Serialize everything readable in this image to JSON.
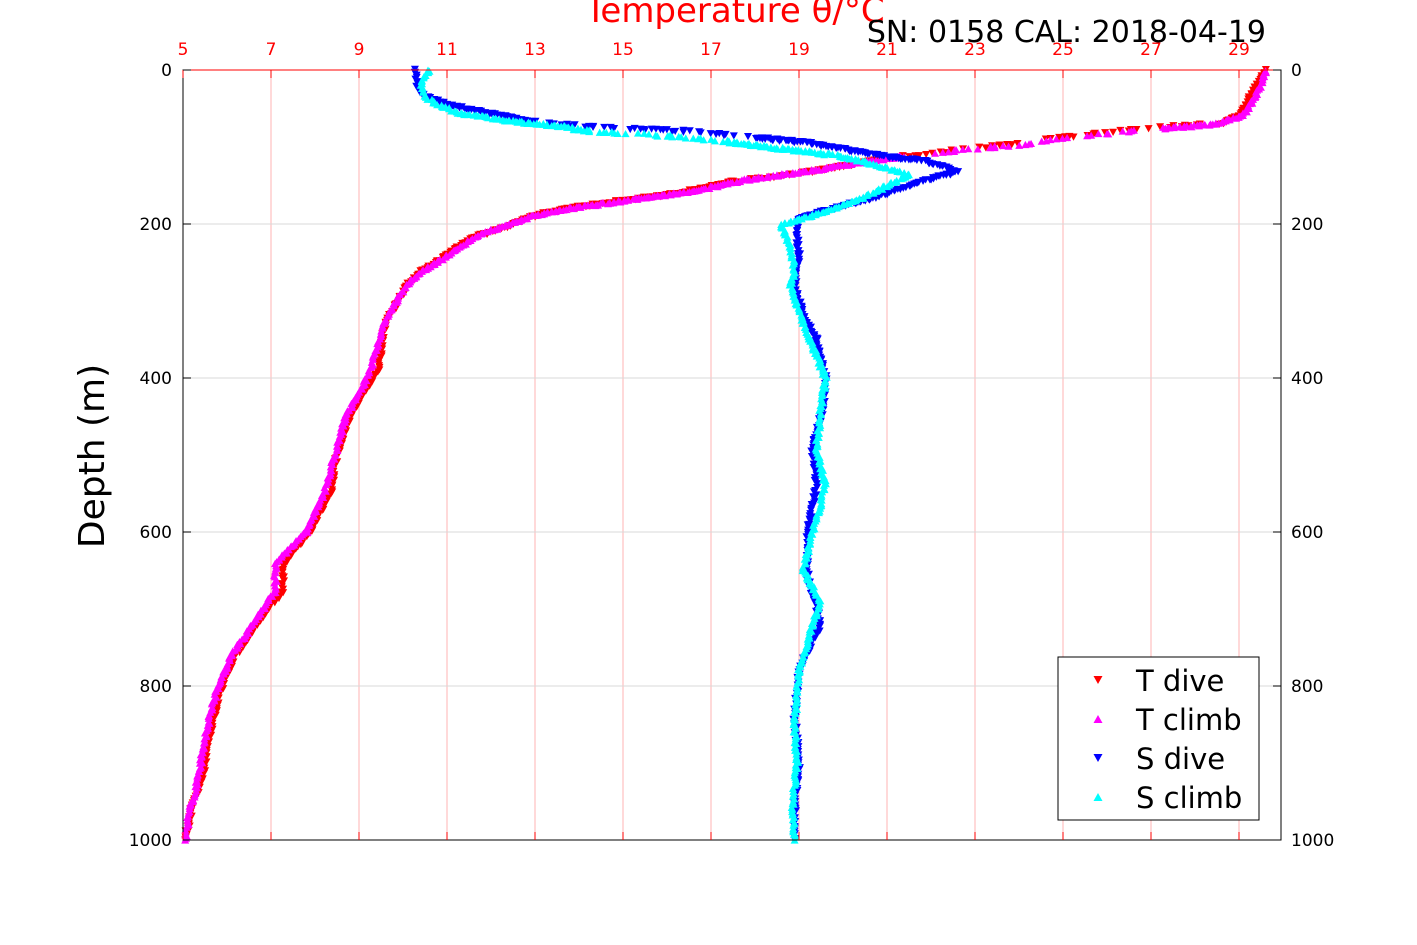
{
  "chart_data": {
    "type": "scatter",
    "title": "Temperature θ/°C",
    "annotation": "SN: 0158  CAL: 2018-04-19",
    "ylabel": "Depth (m)",
    "xlim": [
      5,
      30
    ],
    "ylim": [
      1000,
      0
    ],
    "x_ticks": [
      "5",
      "7",
      "9",
      "11",
      "13",
      "15",
      "17",
      "19",
      "21",
      "23",
      "25",
      "27",
      "29"
    ],
    "y_ticks": [
      "0",
      "200",
      "400",
      "600",
      "800",
      "1000"
    ],
    "grid": true,
    "legend_position": "bottom-right",
    "colors": {
      "axis_top": "#ff0000",
      "axis_left": "#000000",
      "grid": "#d9d9d9",
      "grid_top": "#ffb3b3"
    },
    "series": [
      {
        "name": "T dive",
        "color": "#ff0000",
        "marker": "triangle-down",
        "points": [
          [
            29.6,
            0
          ],
          [
            29.4,
            20
          ],
          [
            29.2,
            40
          ],
          [
            29.0,
            60
          ],
          [
            28.6,
            70
          ],
          [
            27.0,
            75
          ],
          [
            25.5,
            85
          ],
          [
            24.0,
            95
          ],
          [
            22.5,
            105
          ],
          [
            21.0,
            115
          ],
          [
            20.0,
            125
          ],
          [
            19.0,
            135
          ],
          [
            17.5,
            145
          ],
          [
            16.3,
            160
          ],
          [
            15.0,
            170
          ],
          [
            14.0,
            178
          ],
          [
            13.3,
            185
          ],
          [
            12.8,
            193
          ],
          [
            12.3,
            205
          ],
          [
            11.6,
            218
          ],
          [
            11.2,
            232
          ],
          [
            10.8,
            248
          ],
          [
            10.4,
            262
          ],
          [
            10.1,
            280
          ],
          [
            9.9,
            300
          ],
          [
            9.6,
            330
          ],
          [
            9.5,
            360
          ],
          [
            9.45,
            390
          ],
          [
            9.1,
            420
          ],
          [
            8.8,
            450
          ],
          [
            8.5,
            500
          ],
          [
            8.35,
            550
          ],
          [
            7.9,
            600
          ],
          [
            7.3,
            640
          ],
          [
            7.25,
            680
          ],
          [
            6.8,
            710
          ],
          [
            6.2,
            760
          ],
          [
            5.9,
            800
          ],
          [
            5.7,
            840
          ],
          [
            5.55,
            880
          ],
          [
            5.45,
            920
          ],
          [
            5.2,
            960
          ],
          [
            5.05,
            1000
          ]
        ]
      },
      {
        "name": "T climb",
        "color": "#ff00ff",
        "marker": "triangle-up",
        "points": [
          [
            29.6,
            0
          ],
          [
            29.5,
            20
          ],
          [
            29.3,
            40
          ],
          [
            29.1,
            58
          ],
          [
            28.5,
            70
          ],
          [
            27.3,
            75
          ],
          [
            25.8,
            83
          ],
          [
            24.3,
            95
          ],
          [
            22.8,
            103
          ],
          [
            21.3,
            112
          ],
          [
            20.2,
            122
          ],
          [
            19.1,
            132
          ],
          [
            17.8,
            142
          ],
          [
            16.5,
            158
          ],
          [
            15.2,
            168
          ],
          [
            14.2,
            176
          ],
          [
            13.5,
            182
          ],
          [
            12.9,
            190
          ],
          [
            12.4,
            200
          ],
          [
            11.7,
            215
          ],
          [
            11.3,
            230
          ],
          [
            10.9,
            245
          ],
          [
            10.5,
            258
          ],
          [
            10.15,
            275
          ],
          [
            9.9,
            295
          ],
          [
            9.55,
            330
          ],
          [
            9.4,
            360
          ],
          [
            9.25,
            390
          ],
          [
            9.0,
            420
          ],
          [
            8.7,
            450
          ],
          [
            8.45,
            500
          ],
          [
            8.2,
            550
          ],
          [
            7.8,
            600
          ],
          [
            7.1,
            640
          ],
          [
            7.1,
            675
          ],
          [
            6.7,
            710
          ],
          [
            6.1,
            760
          ],
          [
            5.8,
            800
          ],
          [
            5.6,
            840
          ],
          [
            5.45,
            880
          ],
          [
            5.35,
            920
          ],
          [
            5.15,
            960
          ],
          [
            5.05,
            1000
          ]
        ]
      },
      {
        "name": "S dive",
        "color": "#0000ff",
        "marker": "triangle-down",
        "points": [
          [
            10.3,
            0
          ],
          [
            10.3,
            20
          ],
          [
            10.5,
            35
          ],
          [
            11.0,
            45
          ],
          [
            11.8,
            55
          ],
          [
            13.0,
            68
          ],
          [
            14.5,
            75
          ],
          [
            16.5,
            80
          ],
          [
            18.0,
            88
          ],
          [
            19.2,
            95
          ],
          [
            20.2,
            105
          ],
          [
            21.0,
            113
          ],
          [
            21.8,
            118
          ],
          [
            22.6,
            132
          ],
          [
            21.8,
            145
          ],
          [
            20.8,
            165
          ],
          [
            19.8,
            180
          ],
          [
            19.0,
            193
          ],
          [
            18.95,
            210
          ],
          [
            19.0,
            240
          ],
          [
            18.9,
            280
          ],
          [
            19.1,
            320
          ],
          [
            19.4,
            350
          ],
          [
            19.6,
            400
          ],
          [
            19.55,
            440
          ],
          [
            19.3,
            490
          ],
          [
            19.4,
            540
          ],
          [
            19.2,
            600
          ],
          [
            19.2,
            660
          ],
          [
            19.5,
            720
          ],
          [
            19.0,
            780
          ],
          [
            18.9,
            840
          ],
          [
            19.0,
            900
          ],
          [
            18.9,
            960
          ],
          [
            18.9,
            1000
          ]
        ]
      },
      {
        "name": "S climb",
        "color": "#00ffff",
        "marker": "triangle-up",
        "points": [
          [
            10.6,
            0
          ],
          [
            10.4,
            15
          ],
          [
            10.5,
            35
          ],
          [
            11.2,
            55
          ],
          [
            12.3,
            65
          ],
          [
            13.5,
            72
          ],
          [
            14.3,
            80
          ],
          [
            16.0,
            85
          ],
          [
            17.4,
            93
          ],
          [
            18.5,
            101
          ],
          [
            19.8,
            110
          ],
          [
            20.7,
            122
          ],
          [
            21.5,
            136
          ],
          [
            21.0,
            150
          ],
          [
            20.3,
            170
          ],
          [
            19.5,
            185
          ],
          [
            18.6,
            200
          ],
          [
            18.8,
            230
          ],
          [
            18.9,
            260
          ],
          [
            18.8,
            280
          ],
          [
            19.1,
            330
          ],
          [
            19.4,
            370
          ],
          [
            19.6,
            400
          ],
          [
            19.5,
            440
          ],
          [
            19.4,
            490
          ],
          [
            19.6,
            540
          ],
          [
            19.3,
            600
          ],
          [
            19.1,
            650
          ],
          [
            19.5,
            690
          ],
          [
            19.3,
            720
          ],
          [
            19.0,
            780
          ],
          [
            18.9,
            850
          ],
          [
            18.95,
            900
          ],
          [
            18.85,
            960
          ],
          [
            18.9,
            1000
          ]
        ]
      }
    ]
  }
}
